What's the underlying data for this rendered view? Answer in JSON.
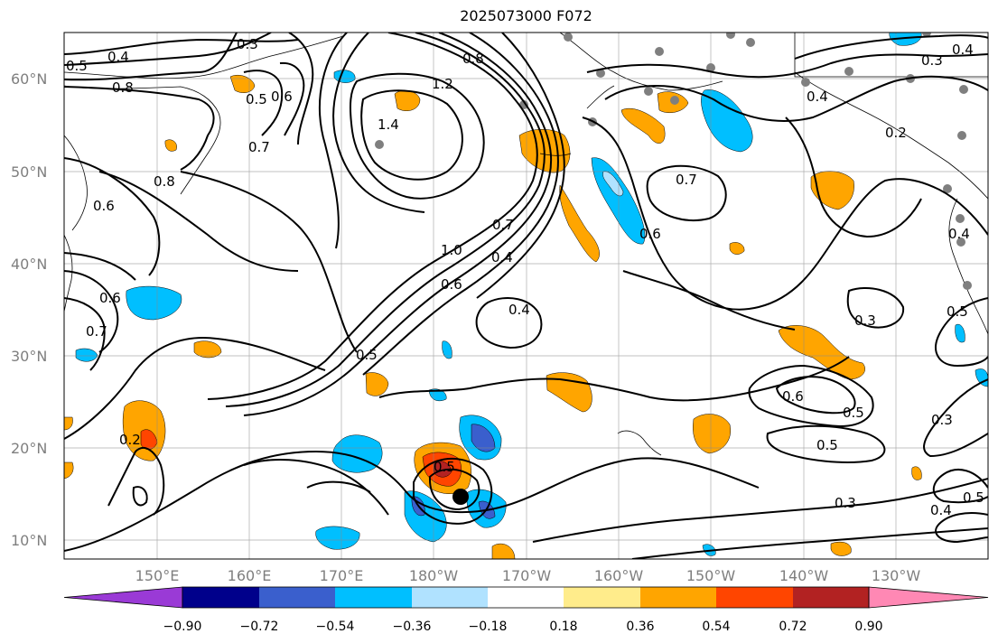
{
  "title": "2025073000 F072",
  "lat_labels": [
    "60°N",
    "50°N",
    "40°N",
    "30°N",
    "20°N",
    "10°N"
  ],
  "lon_labels": [
    "150°E",
    "160°E",
    "170°E",
    "180°W",
    "170°W",
    "160°W",
    "150°W",
    "140°W",
    "130°W"
  ],
  "colorbar": {
    "colors": [
      "#9a3ad6",
      "#00008b",
      "#3a5fcd",
      "#00bfff",
      "#b0e2ff",
      "#ffffff",
      "#ffec8b",
      "#ffa500",
      "#ff4500",
      "#b22222",
      "#ff88b4"
    ],
    "ticks": [
      "−0.90",
      "−0.72",
      "−0.54",
      "−0.36",
      "−0.18",
      "0.18",
      "0.36",
      "0.54",
      "0.72",
      "0.90"
    ]
  },
  "contour_labels": [
    "0.3",
    "0.4",
    "0.5",
    "0.8",
    "0.5",
    "0.6",
    "0.7",
    "0.8",
    "1.2",
    "1.4",
    "0.8",
    "0.7",
    "0.6",
    "1.0",
    "0.6",
    "0.7",
    "0.4",
    "0.4",
    "0.5",
    "0.4",
    "0.6",
    "0.5",
    "0.3",
    "0.6",
    "0.5",
    "0.5",
    "0.3",
    "0.5",
    "0.3",
    "0.4",
    "0.5",
    "0.3",
    "0.4",
    "0.2",
    "0.2",
    "0.6",
    "0.7",
    "0.4"
  ]
}
